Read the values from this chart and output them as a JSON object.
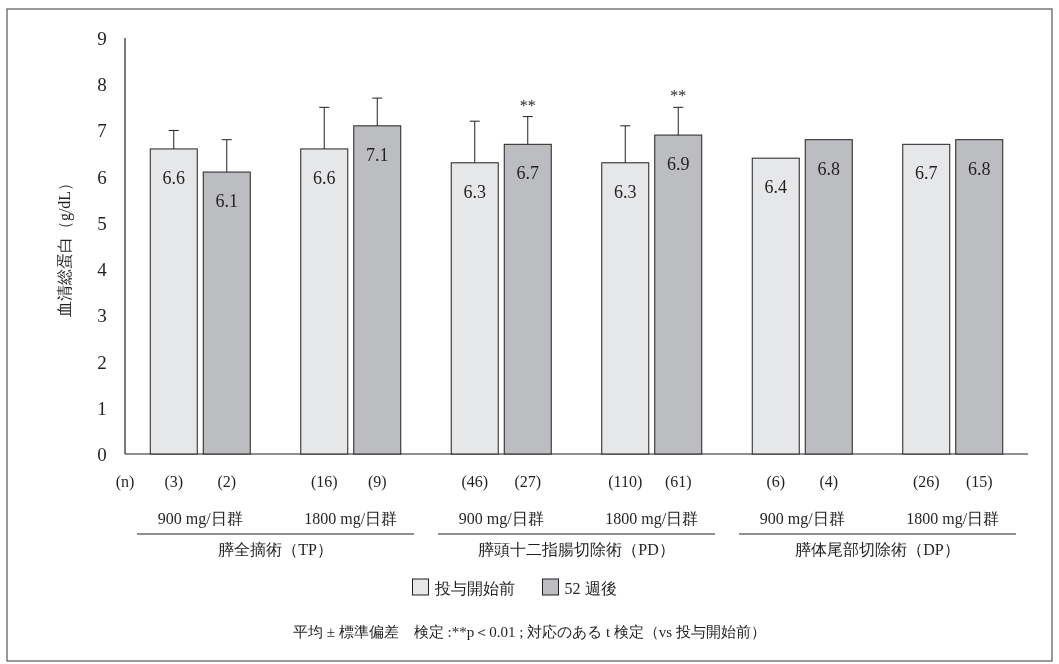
{
  "chart_data": {
    "type": "bar",
    "ylabel": "血清総蛋白（g/dL）",
    "categories": [
      "900 mg/日群",
      "1800 mg/日群",
      "900 mg/日群",
      "1800 mg/日群",
      "900 mg/日群",
      "1800 mg/日群"
    ],
    "series": [
      {
        "name": "投与開始前",
        "color": "#e6e7e8",
        "values": [
          6.6,
          6.6,
          6.3,
          6.3,
          6.4,
          6.7
        ],
        "errors": [
          0.4,
          0.9,
          0.9,
          0.8,
          null,
          null
        ]
      },
      {
        "name": "52 週後",
        "color": "#bcbdc0",
        "values": [
          6.1,
          7.1,
          6.7,
          6.9,
          6.8,
          6.8
        ],
        "errors": [
          0.7,
          0.6,
          0.6,
          0.6,
          null,
          null
        ]
      }
    ],
    "ylim": [
      0,
      9
    ],
    "yticks": [
      0,
      1,
      2,
      3,
      4,
      5,
      6,
      7,
      8,
      9
    ],
    "data_labels": true,
    "legend": "bottom",
    "annotations": [
      "**",
      "**",
      "(n)",
      "(3)",
      "(2)",
      "(16)",
      "(9)",
      "(46)",
      "(27)",
      "(110)",
      "(61)",
      "(6)",
      "(4)",
      "(26)",
      "(15)",
      "膵全摘術（TP）",
      "膵頭十二指腸切除術（PD）",
      "膵体尾部切除術（DP）",
      "平均 ± 標準偏差　検定 :**p＜0.01 ; 対応のある t 検定（vs 投与開始前）"
    ]
  }
}
